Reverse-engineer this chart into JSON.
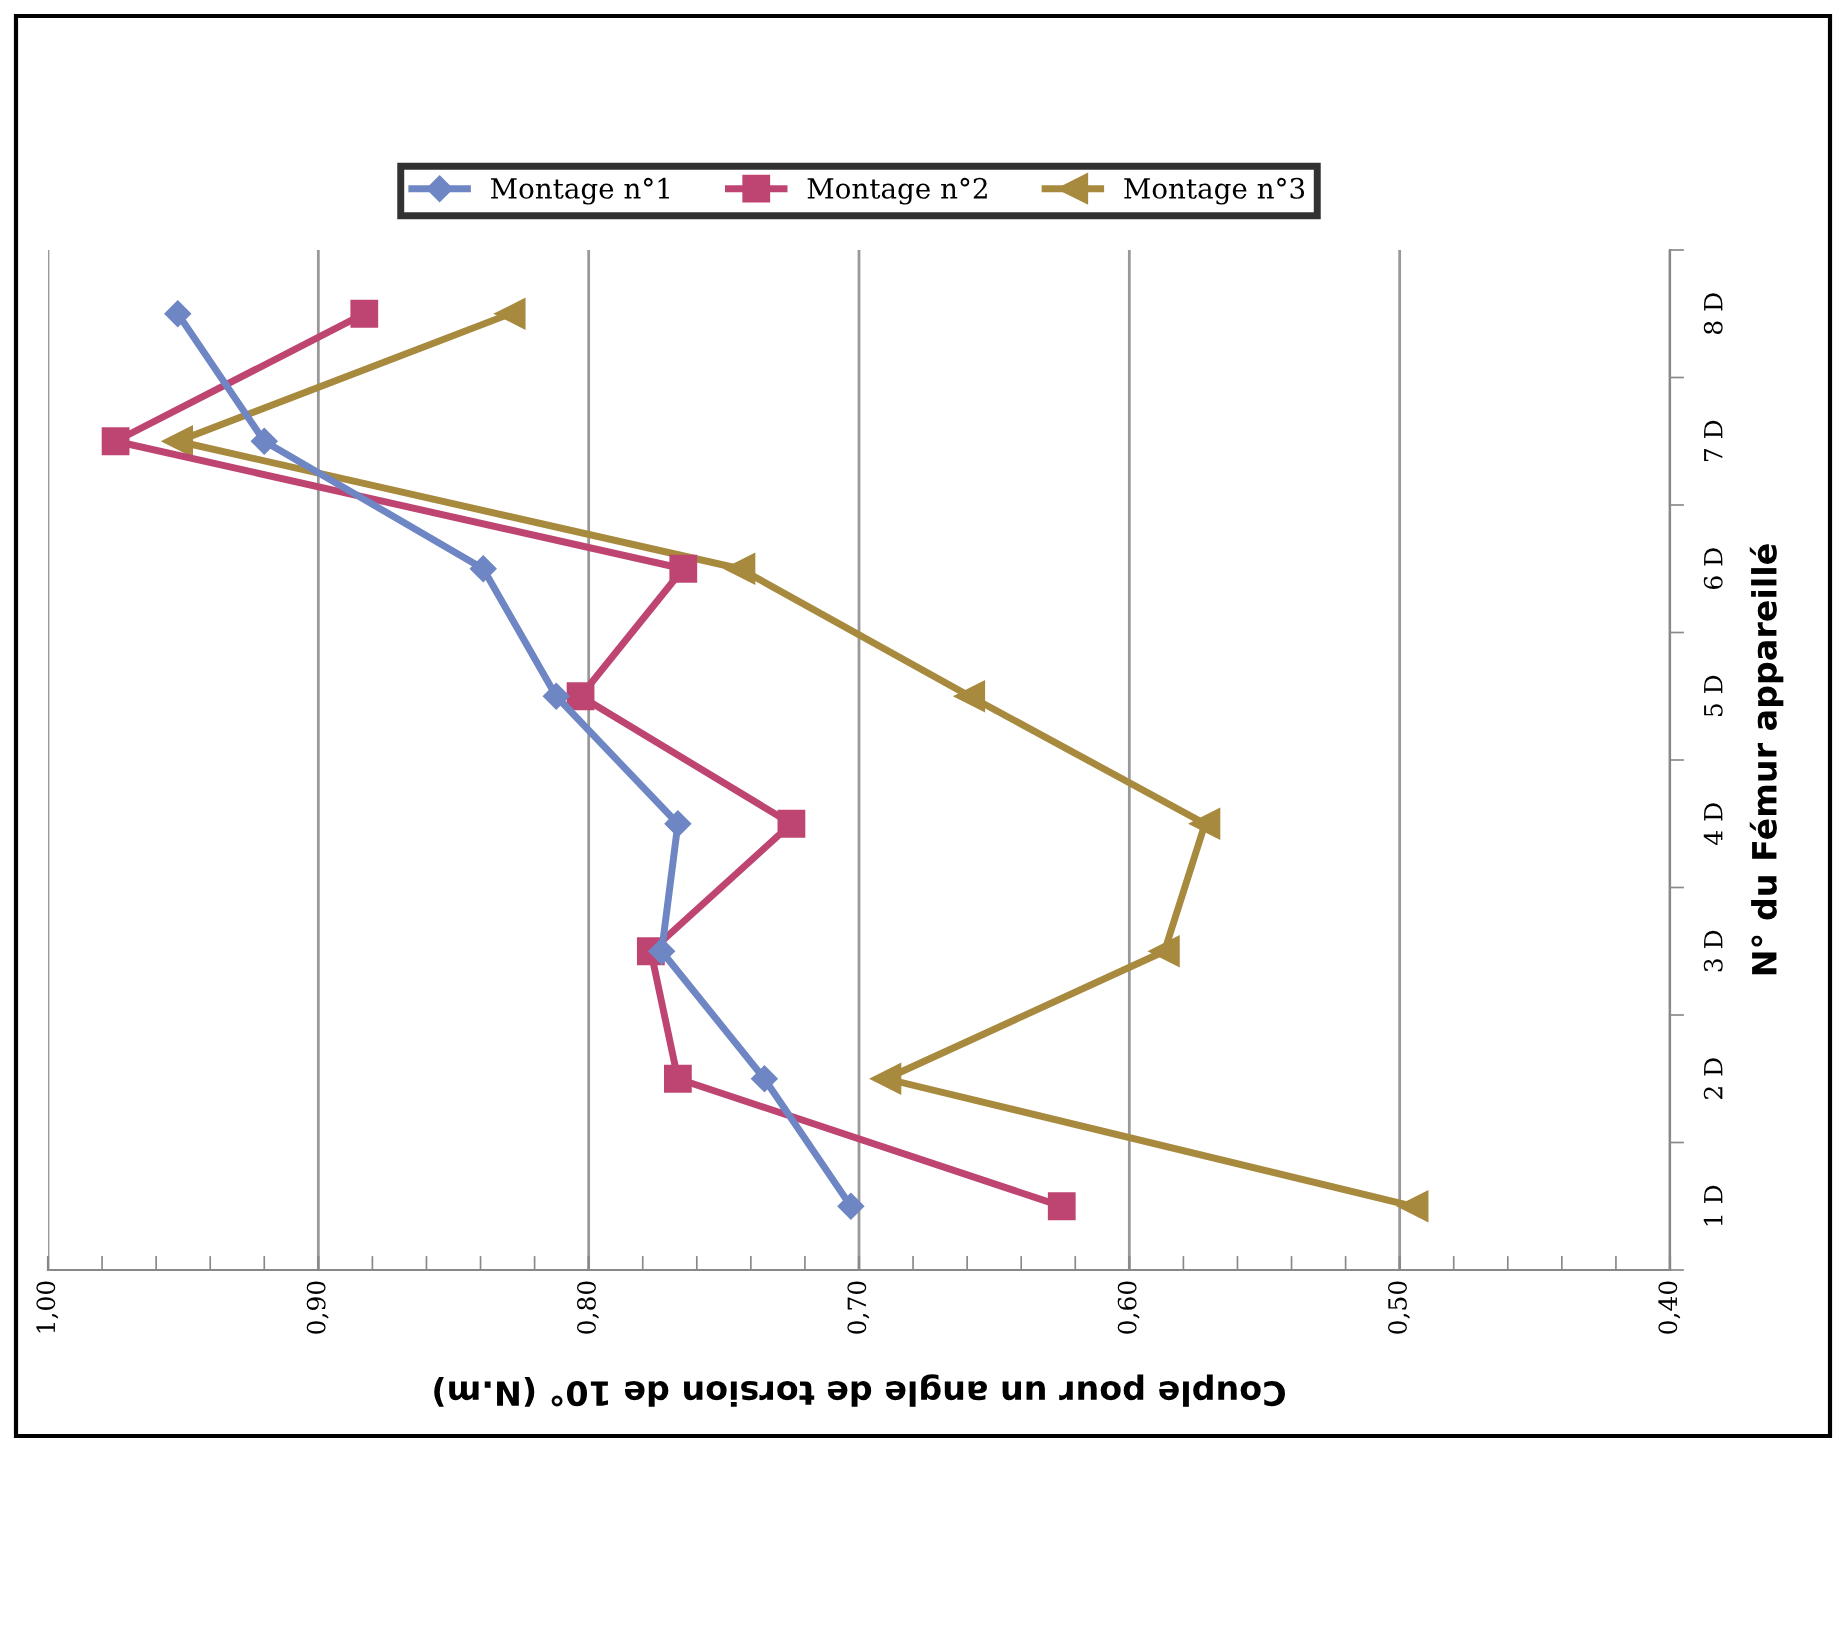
{
  "chart_data": {
    "type": "line",
    "orientation": "horizontal",
    "ylabel": "N° du Fémur appareillé",
    "xlabel": "Couple pour un angle de torsion de 10° (N.m)",
    "categories": [
      "8 D",
      "7 D",
      "6 D",
      "5 D",
      "4 D",
      "3 D",
      "2 D",
      "1 D"
    ],
    "series": [
      {
        "name": "Montage n°1",
        "color": "#6f86c4",
        "marker": "diamond",
        "values": [
          0.952,
          0.92,
          0.839,
          0.812,
          0.767,
          0.773,
          0.735,
          0.703
        ]
      },
      {
        "name": "Montage n°2",
        "color": "#be4572",
        "marker": "square",
        "values": [
          0.883,
          0.975,
          0.765,
          0.803,
          0.725,
          0.777,
          0.767,
          0.625
        ]
      },
      {
        "name": "Montage n°3",
        "color": "#a88a3e",
        "marker": "triangle",
        "values": [
          0.829,
          0.952,
          0.744,
          0.659,
          0.572,
          0.587,
          0.69,
          0.495
        ]
      }
    ],
    "xlim": [
      1.0,
      0.4
    ],
    "xticks": [
      {
        "value": 1.0,
        "label": "1,00"
      },
      {
        "value": 0.98,
        "label": null
      },
      {
        "value": 0.96,
        "label": null
      },
      {
        "value": 0.94,
        "label": null
      },
      {
        "value": 0.92,
        "label": null
      },
      {
        "value": 0.9,
        "label": "0,90"
      },
      {
        "value": 0.88,
        "label": null
      },
      {
        "value": 0.86,
        "label": null
      },
      {
        "value": 0.84,
        "label": null
      },
      {
        "value": 0.82,
        "label": null
      },
      {
        "value": 0.8,
        "label": "0,80"
      },
      {
        "value": 0.78,
        "label": null
      },
      {
        "value": 0.76,
        "label": null
      },
      {
        "value": 0.74,
        "label": null
      },
      {
        "value": 0.72,
        "label": null
      },
      {
        "value": 0.7,
        "label": "0,70"
      },
      {
        "value": 0.68,
        "label": null
      },
      {
        "value": 0.66,
        "label": null
      },
      {
        "value": 0.64,
        "label": null
      },
      {
        "value": 0.62,
        "label": null
      },
      {
        "value": 0.6,
        "label": "0,60"
      },
      {
        "value": 0.58,
        "label": null
      },
      {
        "value": 0.56,
        "label": null
      },
      {
        "value": 0.54,
        "label": null
      },
      {
        "value": 0.52,
        "label": null
      },
      {
        "value": 0.5,
        "label": "0,50"
      },
      {
        "value": 0.48,
        "label": null
      },
      {
        "value": 0.46,
        "label": null
      },
      {
        "value": 0.44,
        "label": null
      },
      {
        "value": 0.42,
        "label": null
      },
      {
        "value": 0.4,
        "label": "0,40"
      }
    ],
    "grid": "x",
    "legend": "top"
  }
}
